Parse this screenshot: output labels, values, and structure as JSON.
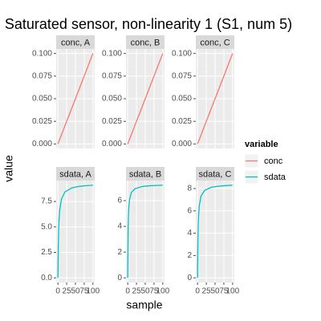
{
  "chart_data": {
    "type": "line",
    "title": "Saturated sensor, non-linearity 1 (S1, num 5)",
    "x_label": "sample",
    "y_label": "value",
    "legend_title": "variable",
    "grid": true,
    "x": [
      0,
      1,
      2,
      3,
      5,
      10,
      20,
      40,
      60,
      80,
      100
    ],
    "xlim": [
      -5,
      105
    ],
    "xticks": [
      0,
      25,
      50,
      75,
      100
    ],
    "series": [
      {
        "name": "conc",
        "color": "#F8766D",
        "panels": [
          {
            "strip": "conc, A",
            "ylim": [
              -0.005,
              0.105
            ],
            "yticks": [
              {
                "value": 0,
                "label": "0.000"
              },
              {
                "value": 0.025,
                "label": "0.025"
              },
              {
                "value": 0.05,
                "label": "0.050"
              },
              {
                "value": 0.075,
                "label": "0.075"
              },
              {
                "value": 0.1,
                "label": "0.100"
              }
            ],
            "values": [
              0,
              0.001,
              0.002,
              0.003,
              0.005,
              0.01,
              0.02,
              0.04,
              0.06,
              0.08,
              0.1
            ]
          },
          {
            "strip": "conc, B",
            "ylim": [
              -0.005,
              0.105
            ],
            "yticks": [
              {
                "value": 0,
                "label": "0.000"
              },
              {
                "value": 0.025,
                "label": "0.025"
              },
              {
                "value": 0.05,
                "label": "0.050"
              },
              {
                "value": 0.075,
                "label": "0.075"
              },
              {
                "value": 0.1,
                "label": "0.100"
              }
            ],
            "values": [
              0,
              0.001,
              0.002,
              0.003,
              0.005,
              0.01,
              0.02,
              0.04,
              0.06,
              0.08,
              0.1
            ]
          },
          {
            "strip": "conc, C",
            "ylim": [
              -0.005,
              0.105
            ],
            "yticks": [
              {
                "value": 0,
                "label": "0.000"
              },
              {
                "value": 0.025,
                "label": "0.025"
              },
              {
                "value": 0.05,
                "label": "0.050"
              },
              {
                "value": 0.075,
                "label": "0.075"
              },
              {
                "value": 0.1,
                "label": "0.100"
              }
            ],
            "values": [
              0,
              0.001,
              0.002,
              0.003,
              0.005,
              0.01,
              0.02,
              0.04,
              0.06,
              0.08,
              0.1
            ]
          }
        ]
      },
      {
        "name": "sdata",
        "color": "#00BFC4",
        "panels": [
          {
            "strip": "sdata, A",
            "ylim": [
              -0.455,
              9.555
            ],
            "yticks": [
              {
                "value": 0,
                "label": "0.0"
              },
              2.5,
              {
                "value": 5,
                "label": "5.0"
              },
              7.5
            ],
            "values": [
              0,
              3.09,
              4.64,
              5.57,
              6.63,
              7.73,
              8.44,
              8.84,
              8.98,
              9.05,
              9.1
            ]
          },
          {
            "strip": "sdata, B",
            "ylim": [
              -0.36,
              7.56
            ],
            "yticks": [
              0,
              2,
              4,
              6
            ],
            "values": [
              0,
              3.64,
              4.85,
              5.45,
              6.06,
              6.61,
              6.92,
              7.09,
              7.15,
              7.18,
              7.2
            ]
          },
          {
            "strip": "sdata, C",
            "ylim": [
              -0.415,
              8.715
            ],
            "yticks": [
              0,
              2,
              4,
              6,
              8
            ],
            "values": [
              0,
              3.37,
              4.81,
              5.61,
              6.48,
              7.32,
              7.83,
              8.12,
              8.21,
              8.26,
              8.3
            ]
          }
        ]
      }
    ]
  }
}
